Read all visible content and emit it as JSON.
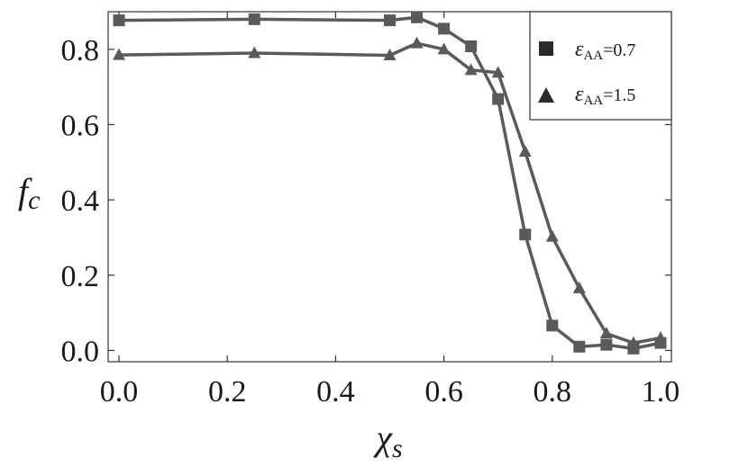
{
  "chart_data": {
    "type": "line",
    "xlabel": "χ",
    "xlabel_sub": "s",
    "ylabel": "f",
    "ylabel_sub": "c",
    "xlim": [
      -0.02,
      1.02
    ],
    "ylim": [
      -0.03,
      0.9
    ],
    "xticks": [
      0.0,
      0.2,
      0.4,
      0.6,
      0.8,
      1.0
    ],
    "xtick_labels": [
      "0.0",
      "0.2",
      "0.4",
      "0.6",
      "0.8",
      "1.0"
    ],
    "yticks": [
      0.0,
      0.2,
      0.4,
      0.6,
      0.8
    ],
    "ytick_labels": [
      "0.0",
      "0.2",
      "0.4",
      "0.6",
      "0.8"
    ],
    "grid": false,
    "legend_position": "top-right",
    "series": [
      {
        "name": "ε",
        "name_sub": "AA",
        "name_rest": "=0.7",
        "marker": "square",
        "color": "#5a5a5a",
        "x": [
          0.0,
          0.25,
          0.5,
          0.55,
          0.6,
          0.65,
          0.7,
          0.75,
          0.8,
          0.85,
          0.9,
          0.95,
          1.0
        ],
        "y": [
          0.877,
          0.88,
          0.877,
          0.885,
          0.855,
          0.808,
          0.668,
          0.308,
          0.066,
          0.01,
          0.015,
          0.005,
          0.02
        ]
      },
      {
        "name": "ε",
        "name_sub": "AA",
        "name_rest": "=1.5",
        "marker": "triangle",
        "color": "#5a5a5a",
        "x": [
          0.0,
          0.25,
          0.5,
          0.55,
          0.6,
          0.65,
          0.7,
          0.75,
          0.8,
          0.85,
          0.9,
          0.95,
          1.0
        ],
        "y": [
          0.785,
          0.79,
          0.784,
          0.816,
          0.8,
          0.745,
          0.738,
          0.528,
          0.302,
          0.165,
          0.045,
          0.02,
          0.033
        ]
      }
    ]
  }
}
